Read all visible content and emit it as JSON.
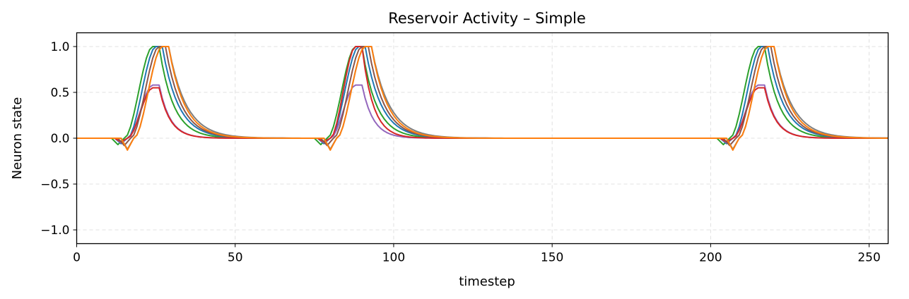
{
  "chart_data": {
    "type": "line",
    "title": "Reservoir Activity – Simple",
    "xlabel": "timestep",
    "ylabel": "Neuron state",
    "xlim": [
      0,
      256
    ],
    "ylim": [
      -1.15,
      1.15
    ],
    "xticks": [
      0,
      50,
      100,
      150,
      200,
      250
    ],
    "yticks": [
      -1.0,
      -0.5,
      0.0,
      0.5,
      1.0
    ],
    "xtick_labels": [
      "0",
      "50",
      "100",
      "150",
      "200",
      "250"
    ],
    "ytick_labels": [
      "−1.0",
      "−0.5",
      "0.0",
      "0.5",
      "1.0"
    ],
    "grid": true,
    "grid_style": "dashed",
    "pulses": [
      13,
      77,
      204
    ],
    "series": [
      {
        "color": "#2ca02c",
        "shape": "wide",
        "peak": 1.0,
        "start": 0,
        "rise": 9,
        "peak_len": 2,
        "tau": 4.5,
        "dip": -0.07
      },
      {
        "color": "#1f77b4",
        "shape": "wide",
        "peak": 1.0,
        "start": 1,
        "rise": 9,
        "peak_len": 2,
        "tau": 5.0,
        "dip": -0.06
      },
      {
        "color": "#9467bd",
        "shape": "narrow",
        "peak": 0.58,
        "start": 1,
        "rise": 8,
        "peak_len": 2,
        "tau": 3.5,
        "dip": -0.05
      },
      {
        "color": "#d62728",
        "shape": "narrow",
        "peak": 0.55,
        "start": 1,
        "rise": 8,
        "peak_len": 2,
        "tau": 3.5,
        "dip": -0.04
      },
      {
        "color": "#8c564b",
        "shape": "wide",
        "peak": 1.0,
        "start": 2,
        "rise": 9,
        "peak_len": 2,
        "tau": 5.0,
        "dip": -0.08
      },
      {
        "color": "#7f7f7f",
        "shape": "wide",
        "peak": 1.0,
        "start": 3,
        "rise": 9,
        "peak_len": 2,
        "tau": 5.5,
        "dip": -0.12
      },
      {
        "color": "#ff7f0e",
        "shape": "wide",
        "peak": 1.0,
        "start": 3,
        "rise": 9,
        "peak_len": 2,
        "tau": 5.0,
        "dip": -0.13
      }
    ],
    "series_overrides": {
      "pulse_2": {
        "#d62728": {
          "peak": 1.0
        }
      }
    }
  }
}
